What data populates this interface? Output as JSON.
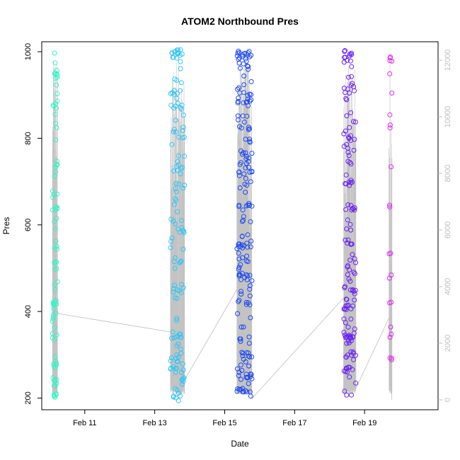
{
  "chart_data": {
    "type": "scatter",
    "title": "ATOM2 Northbound Pres",
    "xlabel": "Date",
    "ylabel": "Pres",
    "x_tick_labels": [
      "Feb 11",
      "Feb 13",
      "Feb 15",
      "Feb 17",
      "Feb 19"
    ],
    "x_tick_values": [
      11,
      13,
      15,
      17,
      19
    ],
    "xlim": [
      9.77,
      21.1
    ],
    "ylim": [
      173,
      1023
    ],
    "y_ticks": [
      200,
      400,
      600,
      800,
      1000
    ],
    "y2lim": [
      -350,
      12650
    ],
    "y2_ticks": [
      0,
      2000,
      4000,
      6000,
      8000,
      10000,
      12000
    ],
    "y2_color": "#bdbdbd",
    "grid": false,
    "legend": "none",
    "colors": [
      "#33f5c6",
      "#2fc6f5",
      "#1f49f0",
      "#6a21f0",
      "#e02cf0"
    ],
    "groups": [
      {
        "x_start": 10.08,
        "x_end": 10.22,
        "color": "#33f5c6",
        "n": 90,
        "seed": 11,
        "clusters": [
          [
            945,
            6
          ],
          [
            870,
            3
          ],
          [
            740,
            4
          ],
          [
            640,
            4
          ],
          [
            545,
            3
          ],
          [
            420,
            6
          ],
          [
            390,
            4
          ],
          [
            240,
            5
          ],
          [
            205,
            5
          ],
          [
            280,
            5
          ]
        ]
      },
      {
        "x_start": 13.45,
        "x_end": 13.85,
        "color": "#2fc6f5",
        "n": 140,
        "seed": 23,
        "clusters": [
          [
            1000,
            8
          ],
          [
            990,
            5
          ],
          [
            905,
            4
          ],
          [
            870,
            4
          ],
          [
            730,
            4
          ],
          [
            690,
            4
          ],
          [
            585,
            5
          ],
          [
            450,
            5
          ],
          [
            345,
            6
          ],
          [
            290,
            6
          ],
          [
            265,
            8
          ],
          [
            245,
            5
          ],
          [
            200,
            4
          ]
        ]
      },
      {
        "x_start": 15.35,
        "x_end": 15.78,
        "color": "#1f49f0",
        "n": 190,
        "seed": 37,
        "clusters": [
          [
            995,
            12
          ],
          [
            980,
            4
          ],
          [
            880,
            5
          ],
          [
            820,
            5
          ],
          [
            760,
            5
          ],
          [
            720,
            5
          ],
          [
            640,
            5
          ],
          [
            550,
            6
          ],
          [
            480,
            6
          ],
          [
            420,
            6
          ],
          [
            300,
            6
          ],
          [
            250,
            10
          ],
          [
            220,
            8
          ]
        ]
      },
      {
        "x_start": 18.4,
        "x_end": 18.75,
        "color": "#6a21f0",
        "n": 150,
        "seed": 53,
        "clusters": [
          [
            1000,
            5
          ],
          [
            985,
            4
          ],
          [
            920,
            4
          ],
          [
            800,
            5
          ],
          [
            700,
            6
          ],
          [
            640,
            5
          ],
          [
            560,
            5
          ],
          [
            455,
            6
          ],
          [
            410,
            5
          ],
          [
            345,
            12
          ],
          [
            300,
            4
          ],
          [
            265,
            8
          ]
        ]
      },
      {
        "x_start": 19.7,
        "x_end": 19.78,
        "color": "#e02cf0",
        "n": 24,
        "seed": 71,
        "clusters": [
          [
            985,
            4
          ],
          [
            910,
            1
          ],
          [
            830,
            1
          ],
          [
            735,
            1
          ],
          [
            640,
            2
          ],
          [
            540,
            2
          ],
          [
            480,
            2
          ],
          [
            420,
            2
          ],
          [
            345,
            2
          ],
          [
            290,
            3
          ]
        ]
      }
    ],
    "line_series": {
      "name": "",
      "color": "#bdbdbd",
      "axis": "right",
      "connectors": [
        [
          10.22,
          3050
        ],
        [
          13.45,
          2400
        ],
        [
          13.85,
          700
        ],
        [
          15.35,
          3900
        ],
        [
          15.78,
          50
        ],
        [
          18.4,
          3600
        ],
        [
          18.75,
          400
        ],
        [
          19.7,
          2900
        ],
        [
          19.78,
          0
        ]
      ]
    }
  }
}
